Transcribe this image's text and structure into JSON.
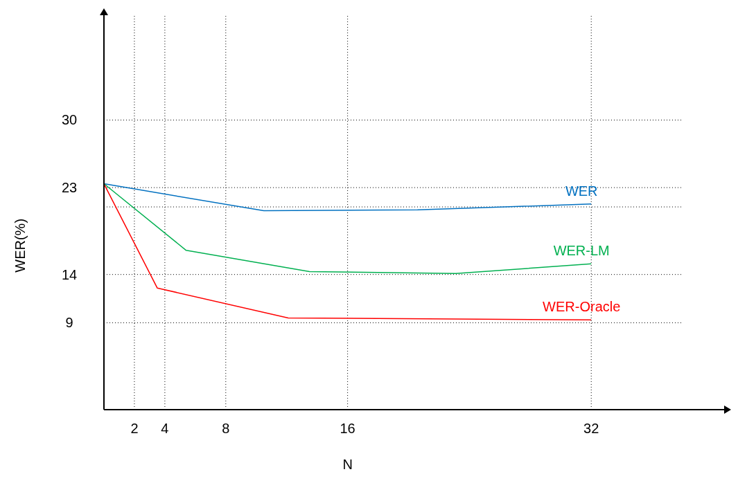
{
  "chart_data": {
    "type": "line",
    "xlabel": "N",
    "ylabel": "WER(%)",
    "xlim": [
      0,
      41
    ],
    "ylim": [
      0,
      41
    ],
    "xticks": [
      2,
      4,
      8,
      16,
      32
    ],
    "yticks": [
      9,
      14,
      {
        "value": 21,
        "label": null
      },
      23,
      30
    ],
    "grid": true,
    "marker": "none",
    "line_style": "solid",
    "series": [
      {
        "name": "WER",
        "color": "#0070c0",
        "x": [
          0,
          10.5,
          20.6,
          32
        ],
        "values": [
          23.4,
          20.6,
          20.7,
          21.3
        ]
      },
      {
        "name": "WER-LM",
        "color": "#00b050",
        "x": [
          0,
          5.4,
          13.5,
          23.1,
          32
        ],
        "values": [
          23.4,
          16.5,
          14.3,
          14.1,
          15.1
        ]
      },
      {
        "name": "WER-Oracle",
        "color": "#ff0000",
        "x": [
          0,
          3.5,
          12.1,
          32
        ],
        "values": [
          23.4,
          12.6,
          9.5,
          9.3
        ]
      }
    ]
  }
}
